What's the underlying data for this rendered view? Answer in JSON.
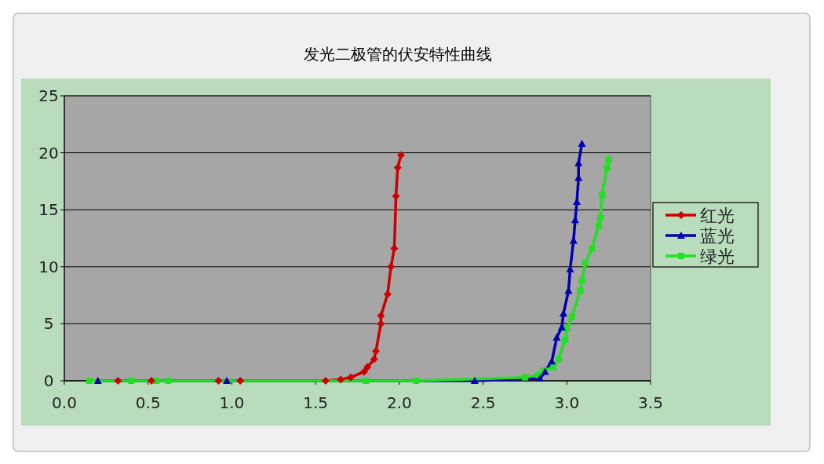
{
  "chart_data": {
    "type": "line",
    "title": "发光二极管的伏安特性曲线",
    "xlim": [
      0,
      3.5
    ],
    "xticks": [
      {
        "value": 0,
        "label": "0.0"
      },
      {
        "value": 0.5,
        "label": "0.5"
      },
      {
        "value": 1,
        "label": "1.0"
      },
      {
        "value": 1.5,
        "label": "1.5"
      },
      {
        "value": 2,
        "label": "2.0"
      },
      {
        "value": 2.5,
        "label": "2.5"
      },
      {
        "value": 3,
        "label": "3.0"
      },
      {
        "value": 3.5,
        "label": "3.5"
      }
    ],
    "ylim": [
      0,
      25
    ],
    "yticks": [
      0,
      5,
      10,
      15,
      20,
      25
    ],
    "grid": "y",
    "legend": "right",
    "series": [
      {
        "name": "红光",
        "color": "#cc0000",
        "marker": "diamond",
        "x": [
          0.32,
          0.52,
          0.92,
          1.05,
          1.56,
          1.65,
          1.71,
          1.79,
          1.81,
          1.85,
          1.86,
          1.89,
          1.89,
          1.93,
          1.95,
          1.97,
          1.98,
          1.99,
          2.01
        ],
        "values": [
          0,
          0,
          0,
          0,
          0,
          0.1,
          0.3,
          0.8,
          1.2,
          1.9,
          2.6,
          5.0,
          5.7,
          7.6,
          10.0,
          11.6,
          16.2,
          18.7,
          19.8
        ]
      },
      {
        "name": "蓝光",
        "color": "#0000b0",
        "marker": "triangle",
        "x": [
          0.2,
          0.97,
          2.45,
          2.84,
          2.87,
          2.91,
          2.94,
          2.97,
          2.98,
          3.01,
          3.02,
          3.04,
          3.05,
          3.06,
          3.07,
          3.07,
          3.09
        ],
        "values": [
          0,
          0,
          0,
          0.2,
          0.8,
          1.7,
          3.8,
          4.7,
          5.9,
          7.9,
          9.8,
          12.3,
          14.1,
          15.7,
          17.8,
          19.1,
          20.8
        ]
      },
      {
        "name": "绿光",
        "color": "#22e022",
        "marker": "square",
        "x": [
          0.15,
          0.4,
          0.55,
          0.62,
          1.8,
          2.1,
          2.75,
          2.83,
          2.86,
          2.92,
          2.95,
          2.99,
          3.0,
          3.03,
          3.08,
          3.09,
          3.11,
          3.15,
          3.19,
          3.2,
          3.21,
          3.24,
          3.25
        ],
        "values": [
          0,
          0,
          0,
          0,
          0,
          0,
          0.3,
          0.5,
          0.9,
          1.2,
          1.9,
          3.6,
          4.6,
          5.6,
          7.9,
          8.8,
          10.3,
          11.6,
          13.6,
          14.3,
          16.3,
          18.7,
          19.4
        ]
      }
    ]
  }
}
